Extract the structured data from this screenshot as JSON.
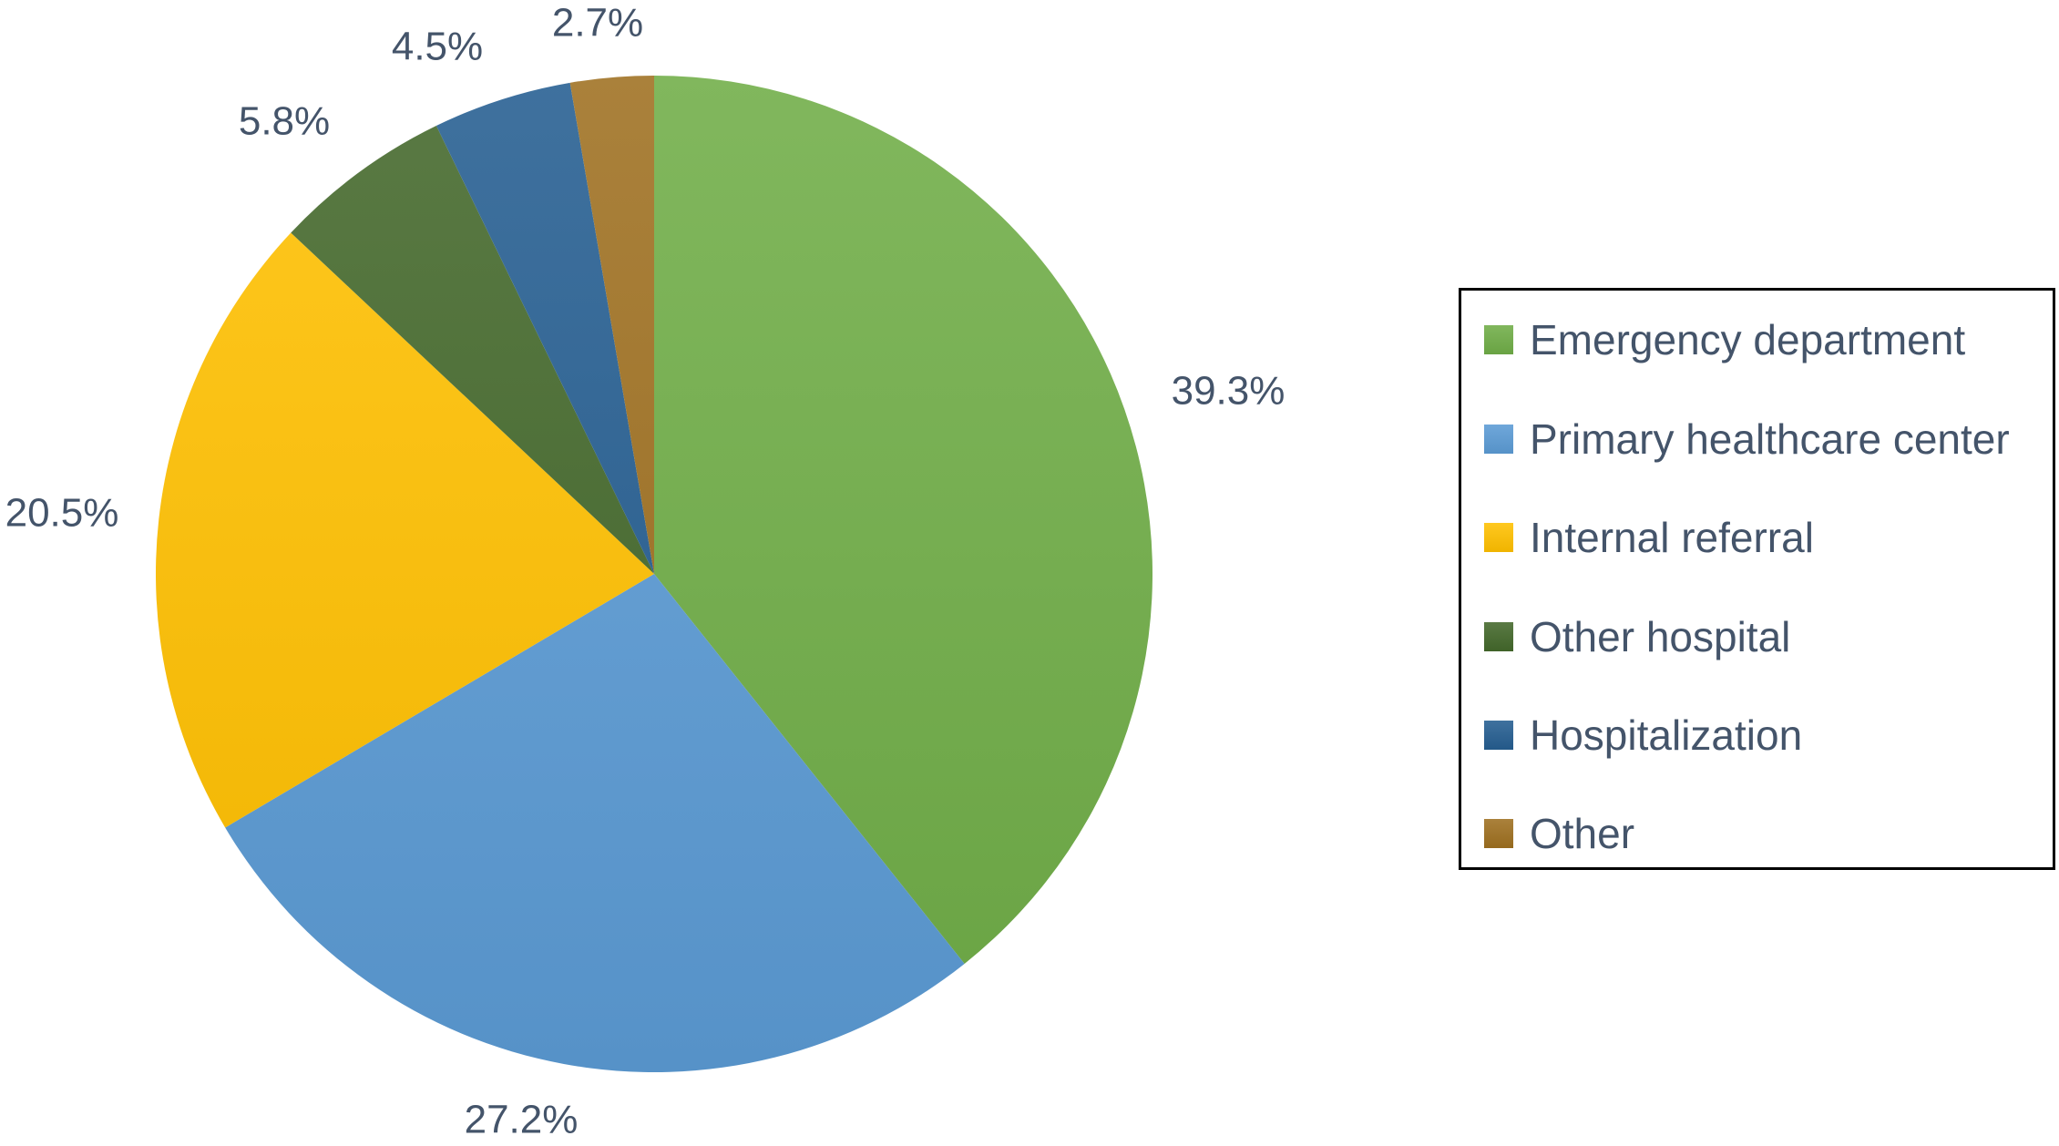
{
  "chart_data": {
    "type": "pie",
    "title": "",
    "legend_position": "right",
    "slices": [
      {
        "name": "Emergency department",
        "value": 39.3,
        "label": "39.3%",
        "color": "#70ad47"
      },
      {
        "name": "Primary healthcare center",
        "value": 27.2,
        "label": "27.2%",
        "color": "#5b9bd5"
      },
      {
        "name": "Internal referral",
        "value": 20.5,
        "label": "20.5%",
        "color": "#ffc000"
      },
      {
        "name": "Other hospital",
        "value": 5.8,
        "label": "5.8%",
        "color": "#43682b"
      },
      {
        "name": "Hospitalization",
        "value": 4.5,
        "label": "4.5%",
        "color": "#255e91"
      },
      {
        "name": "Other",
        "value": 2.7,
        "label": "2.7%",
        "color": "#9e7020"
      }
    ]
  }
}
